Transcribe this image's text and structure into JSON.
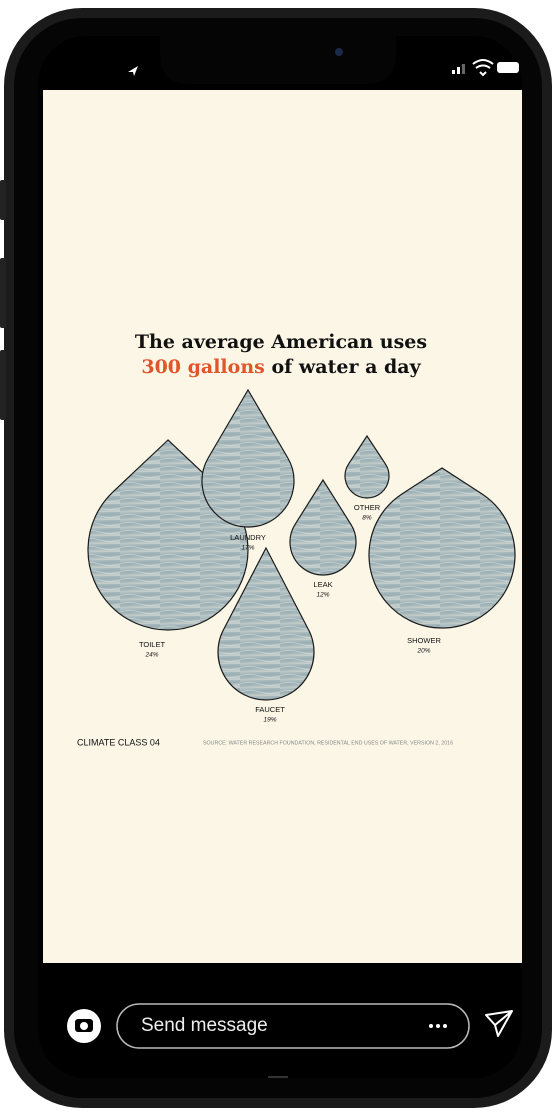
{
  "chart_data": {
    "type": "drop",
    "title_parts": [
      "The average American uses",
      "300 gallons",
      "of water a day"
    ],
    "categories": [
      "TOILET",
      "LAUNDRY",
      "LEAK",
      "OTHER",
      "SHOWER",
      "FAUCET"
    ],
    "values": [
      24,
      17,
      12,
      8,
      20,
      19
    ],
    "value_labels": [
      "24%",
      "17%",
      "12%",
      "8%",
      "20%",
      "19%"
    ],
    "color": "#a9babd",
    "highlight_color": "#e0552a"
  },
  "ui": {
    "footer_left": "CLIMATE CLASS 04",
    "source": "SOURCE: WATER RESEARCH FOUNDATION, RESIDENTAL END USES OF WATER, VERSION 2, 2016",
    "message_placeholder": "Send message"
  }
}
